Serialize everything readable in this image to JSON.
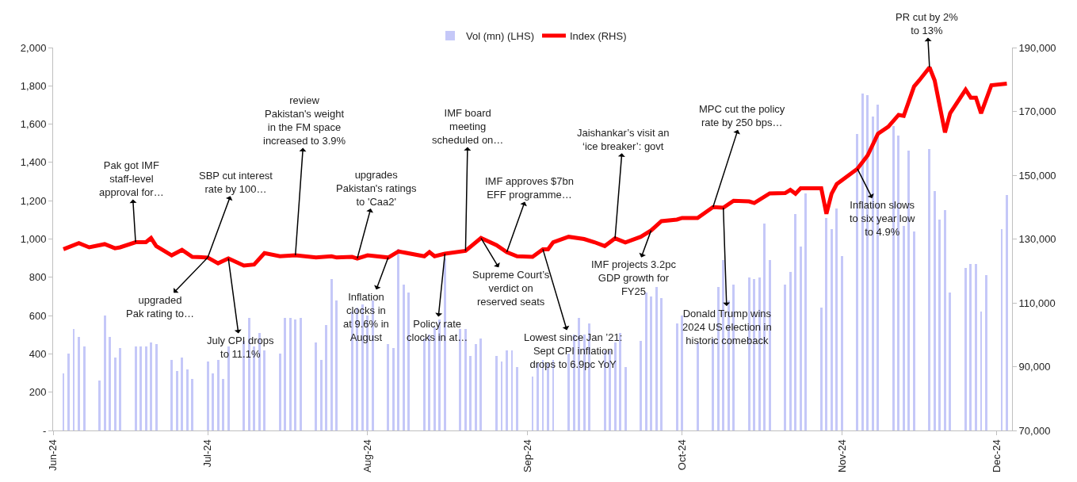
{
  "chart_data": {
    "type": "bar",
    "legend": "top",
    "xlim": [
      "2024-06-01",
      "2024-12-04"
    ],
    "xticks": [
      {
        "value": "2024-06-01",
        "label": "Jun-24"
      },
      {
        "value": "2024-07-01",
        "label": "Jul-24"
      },
      {
        "value": "2024-08-01",
        "label": "Aug-24"
      },
      {
        "value": "2024-09-01",
        "label": "Sep-24"
      },
      {
        "value": "2024-10-01",
        "label": "Oct-24"
      },
      {
        "value": "2024-11-01",
        "label": "Nov-24"
      },
      {
        "value": "2024-12-01",
        "label": "Dec-24"
      }
    ],
    "ylim": [
      0,
      2000
    ],
    "yticks": [
      {
        "value": 0,
        "label": "-"
      },
      200,
      400,
      600,
      800,
      {
        "value": 1000,
        "label": "1,000"
      },
      {
        "value": 1200,
        "label": "1,200"
      },
      {
        "value": 1400,
        "label": "1,400"
      },
      {
        "value": 1600,
        "label": "1,600"
      },
      {
        "value": 1800,
        "label": "1,800"
      },
      {
        "value": 2000,
        "label": "2,000"
      }
    ],
    "y2lim": [
      70000,
      190000
    ],
    "y2ticks": [
      {
        "value": 70000,
        "label": "70,000"
      },
      {
        "value": 90000,
        "label": "90,000"
      },
      {
        "value": 110000,
        "label": "110,000"
      },
      {
        "value": 130000,
        "label": "130,000"
      },
      {
        "value": 150000,
        "label": "150,000"
      },
      {
        "value": 170000,
        "label": "170,000"
      },
      {
        "value": 190000,
        "label": "190,000"
      }
    ],
    "series": [
      {
        "name": "Vol (mn) (LHS)",
        "color": "#c5c8f8",
        "x": [
          "2024-06-03",
          "2024-06-04",
          "2024-06-05",
          "2024-06-06",
          "2024-06-07",
          "2024-06-10",
          "2024-06-11",
          "2024-06-12",
          "2024-06-13",
          "2024-06-14",
          "2024-06-17",
          "2024-06-18",
          "2024-06-19",
          "2024-06-20",
          "2024-06-21",
          "2024-06-24",
          "2024-06-25",
          "2024-06-26",
          "2024-06-27",
          "2024-06-28",
          "2024-07-01",
          "2024-07-02",
          "2024-07-03",
          "2024-07-04",
          "2024-07-05",
          "2024-07-08",
          "2024-07-09",
          "2024-07-10",
          "2024-07-11",
          "2024-07-12",
          "2024-07-15",
          "2024-07-16",
          "2024-07-17",
          "2024-07-18",
          "2024-07-19",
          "2024-07-22",
          "2024-07-23",
          "2024-07-24",
          "2024-07-25",
          "2024-07-26",
          "2024-07-29",
          "2024-07-30",
          "2024-07-31",
          "2024-08-01",
          "2024-08-02",
          "2024-08-05",
          "2024-08-06",
          "2024-08-07",
          "2024-08-08",
          "2024-08-09",
          "2024-08-12",
          "2024-08-13",
          "2024-08-14",
          "2024-08-15",
          "2024-08-16",
          "2024-08-19",
          "2024-08-20",
          "2024-08-21",
          "2024-08-22",
          "2024-08-23",
          "2024-08-26",
          "2024-08-27",
          "2024-08-28",
          "2024-08-29",
          "2024-08-30",
          "2024-09-02",
          "2024-09-03",
          "2024-09-04",
          "2024-09-05",
          "2024-09-06",
          "2024-09-09",
          "2024-09-10",
          "2024-09-11",
          "2024-09-12",
          "2024-09-13",
          "2024-09-16",
          "2024-09-17",
          "2024-09-18",
          "2024-09-19",
          "2024-09-20",
          "2024-09-23",
          "2024-09-24",
          "2024-09-25",
          "2024-09-26",
          "2024-09-27",
          "2024-09-30",
          "2024-10-01",
          "2024-10-04",
          "2024-10-07",
          "2024-10-08",
          "2024-10-09",
          "2024-10-10",
          "2024-10-11",
          "2024-10-14",
          "2024-10-15",
          "2024-10-16",
          "2024-10-17",
          "2024-10-18",
          "2024-10-21",
          "2024-10-22",
          "2024-10-23",
          "2024-10-24",
          "2024-10-25",
          "2024-10-28",
          "2024-10-29",
          "2024-10-30",
          "2024-10-31",
          "2024-11-01",
          "2024-11-04",
          "2024-11-05",
          "2024-11-06",
          "2024-11-07",
          "2024-11-08",
          "2024-11-11",
          "2024-11-12",
          "2024-11-13",
          "2024-11-14",
          "2024-11-15",
          "2024-11-18",
          "2024-11-19",
          "2024-11-20",
          "2024-11-21",
          "2024-11-22",
          "2024-11-25",
          "2024-11-26",
          "2024-11-27",
          "2024-11-28",
          "2024-11-29",
          "2024-12-02",
          "2024-12-03"
        ],
        "values": [
          300,
          400,
          530,
          490,
          440,
          260,
          600,
          490,
          380,
          430,
          440,
          440,
          440,
          460,
          450,
          370,
          310,
          380,
          320,
          270,
          360,
          300,
          370,
          270,
          440,
          470,
          590,
          440,
          510,
          420,
          400,
          590,
          590,
          580,
          590,
          460,
          370,
          550,
          790,
          680,
          620,
          640,
          660,
          600,
          680,
          450,
          430,
          950,
          760,
          720,
          480,
          500,
          540,
          580,
          900,
          530,
          530,
          390,
          450,
          480,
          390,
          360,
          420,
          420,
          330,
          280,
          350,
          370,
          350,
          370,
          400,
          500,
          590,
          500,
          560,
          420,
          420,
          460,
          510,
          330,
          470,
          720,
          700,
          750,
          690,
          560,
          600,
          460,
          480,
          750,
          890,
          680,
          760,
          800,
          790,
          800,
          1080,
          890,
          760,
          830,
          1130,
          960,
          1240,
          640,
          1110,
          1050,
          1160,
          910,
          1550,
          1760,
          1750,
          1640,
          1700,
          1590,
          1540,
          1070,
          1460,
          1040,
          1470,
          1250,
          1100,
          1150,
          720,
          850,
          870,
          870,
          620,
          810,
          1050,
          1230
        ]
      },
      {
        "name": "Index (RHS)",
        "type": "line",
        "axis": "y2",
        "color": "#ff0000",
        "x": [
          "2024-06-03",
          "2024-06-06",
          "2024-06-08",
          "2024-06-11",
          "2024-06-13",
          "2024-06-14",
          "2024-06-17",
          "2024-06-19",
          "2024-06-20",
          "2024-06-21",
          "2024-06-24",
          "2024-06-26",
          "2024-06-28",
          "2024-07-01",
          "2024-07-03",
          "2024-07-05",
          "2024-07-08",
          "2024-07-10",
          "2024-07-12",
          "2024-07-15",
          "2024-07-18",
          "2024-07-22",
          "2024-07-25",
          "2024-07-26",
          "2024-07-29",
          "2024-07-30",
          "2024-08-01",
          "2024-08-05",
          "2024-08-07",
          "2024-08-12",
          "2024-08-13",
          "2024-08-14",
          "2024-08-16",
          "2024-08-20",
          "2024-08-23",
          "2024-08-26",
          "2024-08-28",
          "2024-08-30",
          "2024-09-02",
          "2024-09-04",
          "2024-09-05",
          "2024-09-06",
          "2024-09-09",
          "2024-09-12",
          "2024-09-14",
          "2024-09-16",
          "2024-09-18",
          "2024-09-20",
          "2024-09-23",
          "2024-09-25",
          "2024-09-27",
          "2024-09-30",
          "2024-10-01",
          "2024-10-04",
          "2024-10-07",
          "2024-10-09",
          "2024-10-11",
          "2024-10-14",
          "2024-10-15",
          "2024-10-18",
          "2024-10-21",
          "2024-10-22",
          "2024-10-23",
          "2024-10-24",
          "2024-10-28",
          "2024-10-29",
          "2024-10-30",
          "2024-10-31",
          "2024-11-04",
          "2024-11-06",
          "2024-11-08",
          "2024-11-10",
          "2024-11-12",
          "2024-11-13",
          "2024-11-15",
          "2024-11-16",
          "2024-11-18",
          "2024-11-19",
          "2024-11-21",
          "2024-11-22",
          "2024-11-25",
          "2024-11-26",
          "2024-11-27",
          "2024-11-28",
          "2024-11-30",
          "2024-12-03"
        ],
        "values": [
          126800,
          128700,
          127400,
          128400,
          127100,
          127400,
          129000,
          129000,
          130300,
          127800,
          124900,
          126600,
          124400,
          124200,
          122400,
          123900,
          121700,
          122000,
          125600,
          124600,
          124900,
          124200,
          124600,
          124200,
          124400,
          123900,
          124900,
          124200,
          126100,
          124600,
          125900,
          124600,
          125400,
          126300,
          130300,
          128100,
          125900,
          124600,
          124400,
          126800,
          126800,
          129000,
          130700,
          130000,
          129000,
          127800,
          130200,
          128900,
          130700,
          132700,
          135600,
          136100,
          136600,
          136600,
          140000,
          139800,
          142000,
          141800,
          141300,
          144300,
          144400,
          145400,
          144200,
          145900,
          145900,
          137900,
          144200,
          147200,
          152000,
          156200,
          163000,
          165200,
          168900,
          168600,
          177800,
          179700,
          183800,
          179700,
          163400,
          169400,
          176800,
          174300,
          174300,
          169400,
          178200,
          178700
        ]
      }
    ],
    "annotations": [
      "Pak got IMF\nstaff-level\napproval for…",
      "SBP cut interest\nrate by 100…",
      "upgraded\nPak rating to…",
      "July CPI drops\nto 11.1%",
      "review\nPakistan's weight\nin the FM space\nincreased to 3.9%",
      "upgrades\nPakistan's ratings\nto 'Caa2'",
      "Inflation\nclocks in\nat 9.6% in\nAugust",
      "IMF board\nmeeting\nscheduled on…",
      "Policy rate\nclocks in at…",
      "Supreme Court’s\nverdict on\nreserved seats",
      "IMF approves $7bn\nEFF programme…",
      "Lowest since Jan ’21:\nSept CPI inflation\ndrops to 6.9pc YoY",
      "Jaishankar’s visit an\n‘ice breaker’: govt",
      "IMF projects 3.2pc\nGDP growth for\nFY25",
      "MPC cut the policy\nrate by 250 bps…",
      "Donald Trump wins\n2024 US election in\nhistoric comeback",
      "Inflation slows\nto six year low\nto 4.9%",
      "PR cut by 2%\nto 13%"
    ]
  }
}
